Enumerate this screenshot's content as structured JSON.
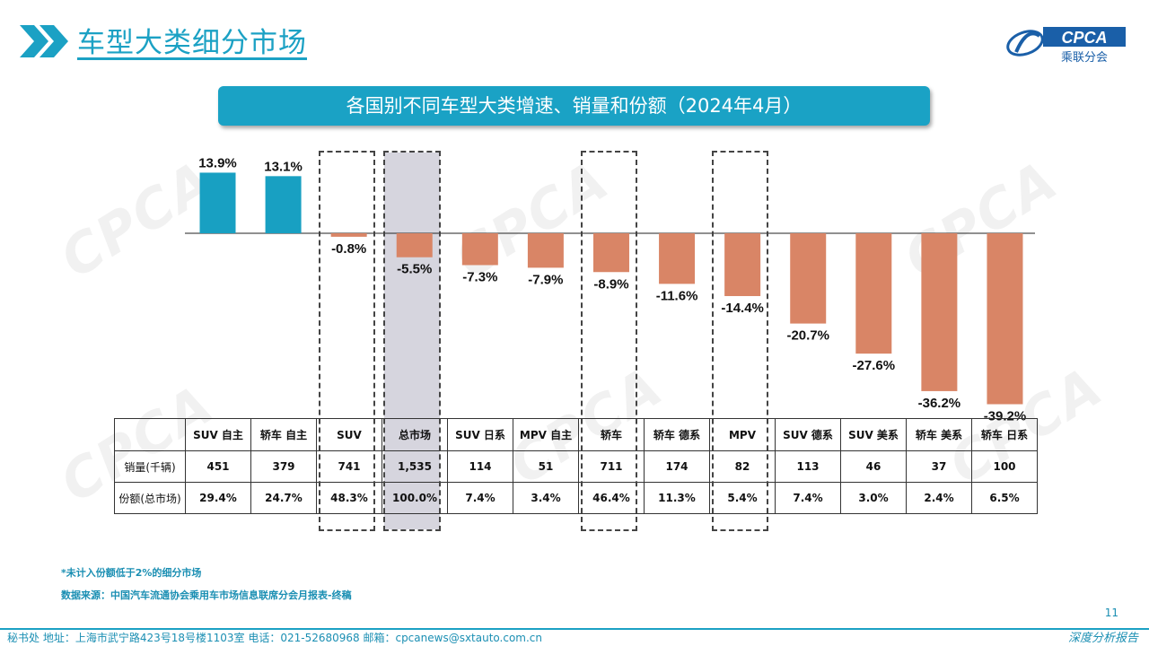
{
  "header": {
    "title": "车型大类细分市场",
    "logo_text": "CPCA",
    "logo_sub": "乘联分会"
  },
  "banner": {
    "text": "各国别不同车型大类增速、销量和份额（2024年4月）"
  },
  "colors": {
    "positive": "#18a0c2",
    "negative": "#d98566",
    "accent": "#1ba1c4",
    "highlight_bg": "#d6d5de"
  },
  "chart_data": {
    "type": "bar",
    "categories": [
      "SUV 自主",
      "轿车 自主",
      "SUV",
      "总市场",
      "SUV 日系",
      "MPV 自主",
      "轿车",
      "轿车 德系",
      "MPV",
      "SUV 德系",
      "SUV 美系",
      "轿车 美系",
      "轿车 日系"
    ],
    "values": [
      13.9,
      13.1,
      -0.8,
      -5.5,
      -7.3,
      -7.9,
      -8.9,
      -11.6,
      -14.4,
      -20.7,
      -27.6,
      -36.2,
      -39.2
    ],
    "value_labels": [
      "13.9%",
      "13.1%",
      "-0.8%",
      "-5.5%",
      "-7.3%",
      "-7.9%",
      "-8.9%",
      "-11.6%",
      "-14.4%",
      "-20.7%",
      "-27.6%",
      "-36.2%",
      "-39.2%"
    ],
    "ylim": [
      -41,
      16
    ],
    "highlighted": [
      "SUV",
      "总市场",
      "轿车",
      "MPV"
    ],
    "table": {
      "rows": [
        {
          "label": "销量(千辆)",
          "values": [
            "451",
            "379",
            "741",
            "1,535",
            "114",
            "51",
            "711",
            "174",
            "82",
            "113",
            "46",
            "37",
            "100"
          ]
        },
        {
          "label": "份额(总市场)",
          "values": [
            "29.4%",
            "24.7%",
            "48.3%",
            "100.0%",
            "7.4%",
            "3.4%",
            "46.4%",
            "11.3%",
            "5.4%",
            "7.4%",
            "3.0%",
            "2.4%",
            "6.5%"
          ]
        }
      ]
    }
  },
  "notes": {
    "line1": "*未计入份额低于2%的细分市场",
    "line2": "数据来源：中国汽车流通协会乘用车市场信息联席分会月报表-终稿"
  },
  "footer": {
    "address": "秘书处    地址：上海市武宁路423号18号楼1103室    电话：021-52680968    邮箱：cpcanews@sxtauto.com.cn",
    "right_text": "深度分析报告",
    "page_number": "11"
  }
}
